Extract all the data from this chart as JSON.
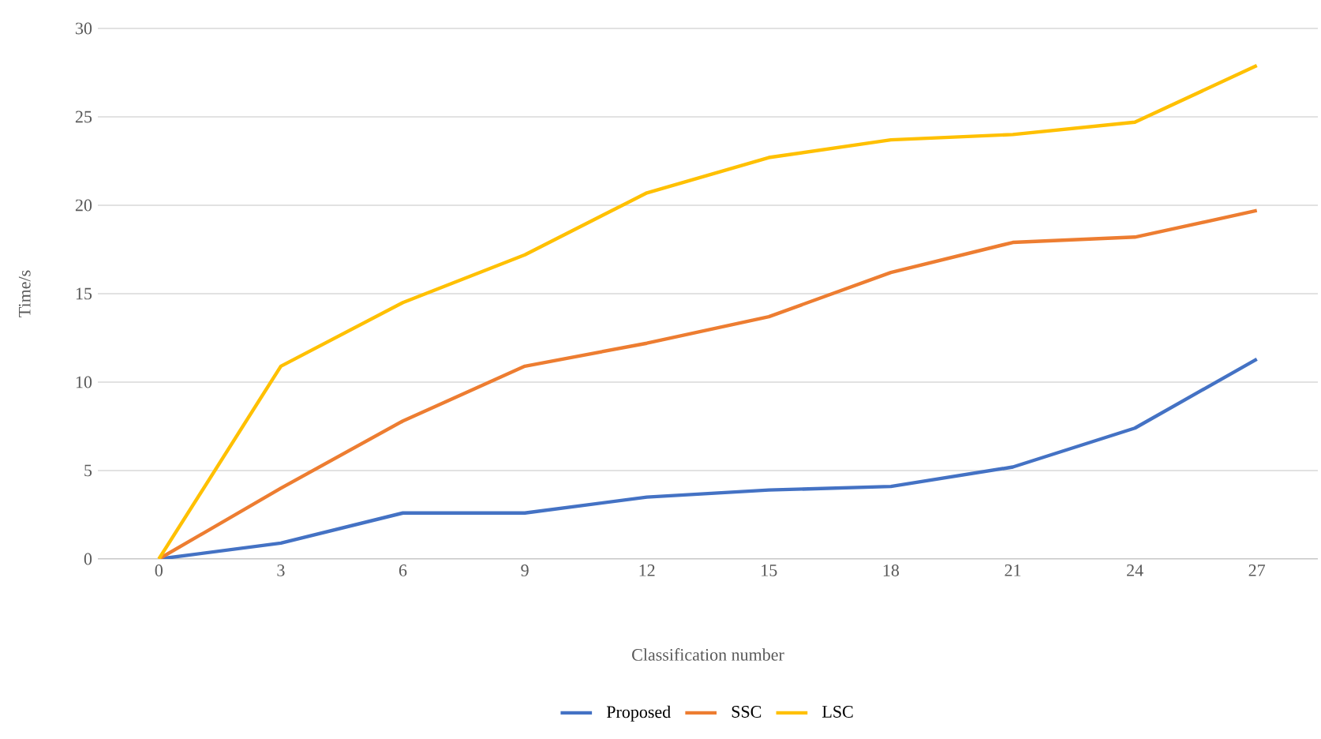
{
  "chart_data": {
    "type": "line",
    "xlabel": "Classification number",
    "ylabel": "Time/s",
    "categories": [
      "0",
      "3",
      "6",
      "9",
      "12",
      "15",
      "18",
      "21",
      "24",
      "27"
    ],
    "series": [
      {
        "name": "Proposed",
        "color": "#4472c4",
        "values": [
          0,
          0.9,
          2.6,
          2.6,
          3.5,
          3.9,
          4.1,
          5.2,
          7.4,
          11.3
        ]
      },
      {
        "name": "SSC",
        "color": "#ed7d31",
        "values": [
          0,
          4.0,
          7.8,
          10.9,
          12.2,
          13.7,
          16.2,
          17.9,
          18.2,
          19.7
        ]
      },
      {
        "name": "LSC",
        "color": "#ffc000",
        "values": [
          0,
          10.9,
          14.5,
          17.2,
          20.7,
          22.7,
          23.7,
          24.0,
          24.7,
          27.9
        ]
      }
    ],
    "ylim": [
      0,
      30
    ],
    "yticks": [
      0,
      5,
      10,
      15,
      20,
      25,
      30
    ],
    "grid": "y",
    "legend": "bottom",
    "marker": "none",
    "line_style": "solid"
  }
}
